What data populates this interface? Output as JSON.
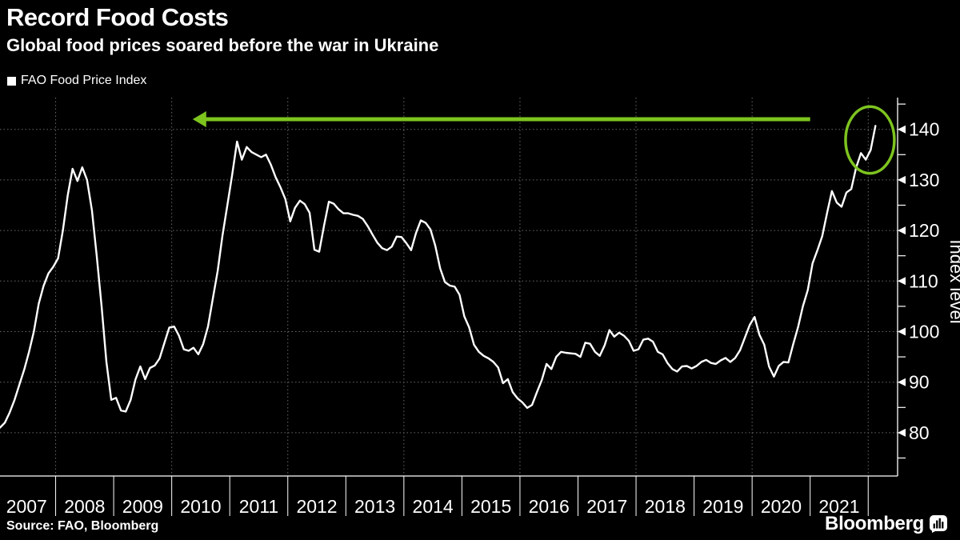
{
  "header": {
    "title": "Record Food Costs",
    "subtitle": "Global food prices soared before the war in Ukraine"
  },
  "legend": {
    "label": "FAO Food Price Index",
    "marker": "square-icon",
    "marker_color": "#ffffff"
  },
  "footer": {
    "source": "Source: FAO, Bloomberg",
    "brand": "Bloomberg",
    "brand_icon": "bloomberg-bar-chart-icon"
  },
  "colors": {
    "background": "#000000",
    "text": "#ffffff",
    "grid": "#6a6a6a",
    "axis": "#ffffff",
    "series_line": "#ffffff",
    "annotation_green": "#7dc41f"
  },
  "chart_data": {
    "type": "line",
    "title": "Record Food Costs",
    "subtitle": "Global food prices soared before the war in Ukraine",
    "series_name": "FAO Food Price Index",
    "frequency": "monthly",
    "start": "2007-01",
    "end": "2022-02",
    "values": [
      81.0,
      82.0,
      84.0,
      86.5,
      89.5,
      92.5,
      96.0,
      100.0,
      105.5,
      109.0,
      111.5,
      112.8,
      114.5,
      120.0,
      127.0,
      132.2,
      129.8,
      132.5,
      130.0,
      124.0,
      115.0,
      105.0,
      94.0,
      86.5,
      86.9,
      84.4,
      84.2,
      86.5,
      90.5,
      93.1,
      90.6,
      92.8,
      93.3,
      94.7,
      97.8,
      100.8,
      101.0,
      99.2,
      96.5,
      96.2,
      96.8,
      95.5,
      97.5,
      101.0,
      106.5,
      112.0,
      119.0,
      125.0,
      131.0,
      137.6,
      134.0,
      136.5,
      135.5,
      135.0,
      134.5,
      135.0,
      133.0,
      130.5,
      128.5,
      126.2,
      121.8,
      124.5,
      125.9,
      125.2,
      123.5,
      116.2,
      115.8,
      121.0,
      125.7,
      125.3,
      124.2,
      123.4,
      123.4,
      123.1,
      122.9,
      122.3,
      120.9,
      119.2,
      117.6,
      116.5,
      116.1,
      116.8,
      118.8,
      118.7,
      117.5,
      116.1,
      119.5,
      122.0,
      121.5,
      120.2,
      117.0,
      112.5,
      109.8,
      109.1,
      108.9,
      107.3,
      103.0,
      100.8,
      97.4,
      96.0,
      95.2,
      94.7,
      94.0,
      92.9,
      89.8,
      90.6,
      88.0,
      86.8,
      86.0,
      84.9,
      85.5,
      88.0,
      90.4,
      93.6,
      92.6,
      95.0,
      96.0,
      95.8,
      95.7,
      95.6,
      95.0,
      97.8,
      97.6,
      96.0,
      95.2,
      97.3,
      100.3,
      99.0,
      99.8,
      99.2,
      98.2,
      96.2,
      96.5,
      98.4,
      98.6,
      98.0,
      96.0,
      95.5,
      93.8,
      92.6,
      92.1,
      93.1,
      93.2,
      92.7,
      93.2,
      94.0,
      94.4,
      93.8,
      93.6,
      94.3,
      94.8,
      94.0,
      94.8,
      96.3,
      98.8,
      101.3,
      102.9,
      99.4,
      97.4,
      93.1,
      91.1,
      93.2,
      94.0,
      93.9,
      97.5,
      100.9,
      105.0,
      108.2,
      113.5,
      116.1,
      118.9,
      123.5,
      127.8,
      125.5,
      124.7,
      127.5,
      128.2,
      132.4,
      135.3,
      134.0,
      135.9,
      140.7
    ],
    "x_axis": {
      "tick_years": [
        2007,
        2008,
        2009,
        2010,
        2011,
        2012,
        2013,
        2014,
        2015,
        2016,
        2017,
        2018,
        2019,
        2020,
        2021
      ],
      "boundary_years": [
        2008,
        2009,
        2010,
        2011,
        2012,
        2013,
        2014,
        2015,
        2016,
        2017,
        2018,
        2019,
        2020,
        2021,
        2022
      ],
      "gridline_years": [
        2008,
        2010,
        2012,
        2014,
        2016,
        2018,
        2020,
        2022
      ],
      "range_years": [
        2007.0,
        2022.5
      ]
    },
    "y_axis": {
      "label": "Index level",
      "ticks": [
        80,
        90,
        100,
        110,
        120,
        130,
        140
      ],
      "minor_ticks": [
        75,
        85,
        95,
        105,
        115,
        125,
        135,
        145
      ],
      "range": [
        71.0,
        146.5
      ],
      "side": "right"
    },
    "grid": "dotted",
    "legend_position": "top-left",
    "annotations": {
      "arrow": {
        "shape": "left-arrow",
        "y_value": 142.0,
        "tip_year": 2010.36,
        "tail_year": 2021.0,
        "color": "#7dc41f"
      },
      "ellipse": {
        "shape": "ellipse",
        "center_year": 2022.03,
        "center_value": 137.9,
        "rx_years": 0.42,
        "ry_units": 6.6,
        "color": "#7dc41f"
      }
    }
  }
}
